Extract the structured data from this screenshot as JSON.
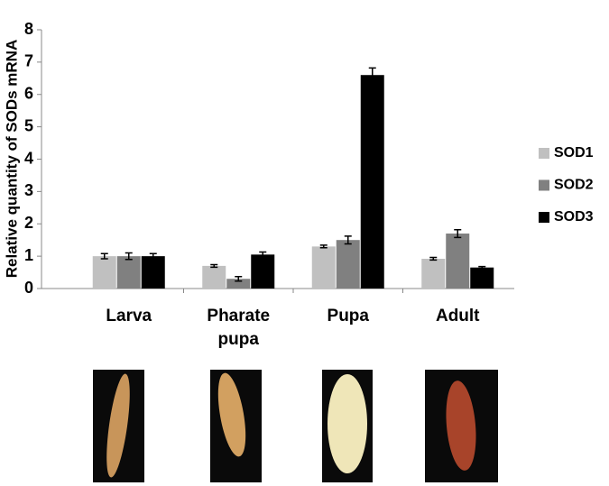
{
  "chart_data": {
    "type": "bar",
    "y_label": "Relative quantity of SODs mRNA",
    "categories": [
      "Larva",
      "Pharate pupa",
      "Pupa",
      "Adult"
    ],
    "series": [
      {
        "name": "SOD1",
        "color": "#c0c0c0",
        "values": [
          1.0,
          0.7,
          1.3,
          0.92
        ],
        "errors": [
          0.08,
          0.04,
          0.04,
          0.04
        ]
      },
      {
        "name": "SOD2",
        "color": "#808080",
        "values": [
          1.0,
          0.3,
          1.5,
          1.7
        ],
        "errors": [
          0.1,
          0.07,
          0.12,
          0.12
        ]
      },
      {
        "name": "SOD3",
        "color": "#000000",
        "values": [
          1.0,
          1.05,
          6.6,
          0.65
        ],
        "errors": [
          0.08,
          0.08,
          0.22,
          0.03
        ]
      }
    ],
    "ylim": [
      0,
      8
    ],
    "yticks": [
      0,
      1,
      2,
      3,
      4,
      5,
      6,
      7,
      8
    ],
    "legend": "right"
  }
}
